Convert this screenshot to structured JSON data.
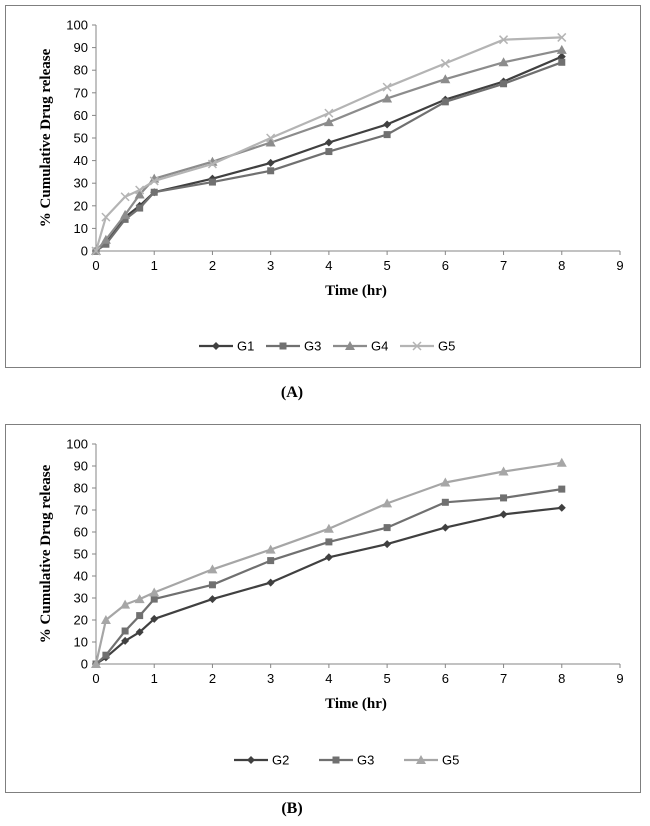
{
  "panel_labels": {
    "a": "(A)",
    "b": "(B)"
  },
  "colors": {
    "dark": "#404040",
    "mid": "#707070",
    "grey": "#8c8c8c",
    "light": "#b4b4b4",
    "axis": "#868686"
  },
  "chart_data": [
    {
      "type": "line",
      "xlabel": "Time (hr)",
      "ylabel": "% Cumulative  Drug release",
      "xlim": [
        0,
        9
      ],
      "ylim": [
        0,
        100
      ],
      "xticks": [
        0,
        1,
        2,
        3,
        4,
        5,
        6,
        7,
        8,
        9
      ],
      "yticks": [
        0,
        10,
        20,
        30,
        40,
        50,
        60,
        70,
        80,
        90,
        100
      ],
      "grid": false,
      "legend": "bottom",
      "series": [
        {
          "name": "G1",
          "marker": "diamond",
          "color": "#404040",
          "x": [
            0,
            0.17,
            0.5,
            0.75,
            1,
            2,
            3,
            4,
            5,
            6,
            7,
            8
          ],
          "y": [
            0,
            4,
            15,
            20,
            26,
            32,
            39,
            48,
            56,
            67,
            75,
            86
          ]
        },
        {
          "name": "G3",
          "marker": "square",
          "color": "#707070",
          "x": [
            0,
            0.17,
            0.5,
            0.75,
            1,
            2,
            3,
            4,
            5,
            6,
            7,
            8
          ],
          "y": [
            0,
            3,
            14,
            19,
            26,
            30.5,
            35.5,
            44,
            51.5,
            66,
            74,
            83.5
          ]
        },
        {
          "name": "G4",
          "marker": "triangle",
          "color": "#8c8c8c",
          "x": [
            0,
            0.17,
            0.5,
            0.75,
            1,
            2,
            3,
            4,
            5,
            6,
            7,
            8
          ],
          "y": [
            0,
            5,
            16,
            25,
            32,
            39.5,
            48,
            57,
            67.5,
            76,
            83.5,
            89
          ]
        },
        {
          "name": "G5",
          "marker": "x",
          "color": "#b4b4b4",
          "x": [
            0,
            0.17,
            0.5,
            0.75,
            1,
            2,
            3,
            4,
            5,
            6,
            7,
            8
          ],
          "y": [
            0,
            15,
            24,
            27,
            31,
            38.5,
            50,
            61,
            72.5,
            83,
            93.5,
            94.5
          ]
        }
      ]
    },
    {
      "type": "line",
      "xlabel": "Time (hr)",
      "ylabel": "% Cumulative  Drug release",
      "xlim": [
        0,
        9
      ],
      "ylim": [
        0,
        100
      ],
      "xticks": [
        0,
        1,
        2,
        3,
        4,
        5,
        6,
        7,
        8,
        9
      ],
      "yticks": [
        0,
        10,
        20,
        30,
        40,
        50,
        60,
        70,
        80,
        90,
        100
      ],
      "grid": false,
      "legend": "bottom",
      "series": [
        {
          "name": "G2",
          "marker": "diamond",
          "color": "#404040",
          "x": [
            0,
            0.17,
            0.5,
            0.75,
            1,
            2,
            3,
            4,
            5,
            6,
            7,
            8
          ],
          "y": [
            0,
            3,
            10.5,
            14.5,
            20.5,
            29.5,
            37,
            48.5,
            54.5,
            62,
            68,
            71
          ]
        },
        {
          "name": "G3",
          "marker": "square",
          "color": "#707070",
          "x": [
            0,
            0.17,
            0.5,
            0.75,
            1,
            2,
            3,
            4,
            5,
            6,
            7,
            8
          ],
          "y": [
            0,
            4,
            15,
            22,
            29.5,
            36,
            47,
            55.5,
            62,
            73.5,
            75.5,
            79.5
          ]
        },
        {
          "name": "G5",
          "marker": "triangle",
          "color": "#a6a6a6",
          "x": [
            0,
            0.17,
            0.5,
            0.75,
            1,
            2,
            3,
            4,
            5,
            6,
            7,
            8
          ],
          "y": [
            0,
            20,
            27,
            29.5,
            32.5,
            43,
            52,
            61.5,
            73,
            82.5,
            87.5,
            91.5
          ]
        }
      ]
    }
  ]
}
